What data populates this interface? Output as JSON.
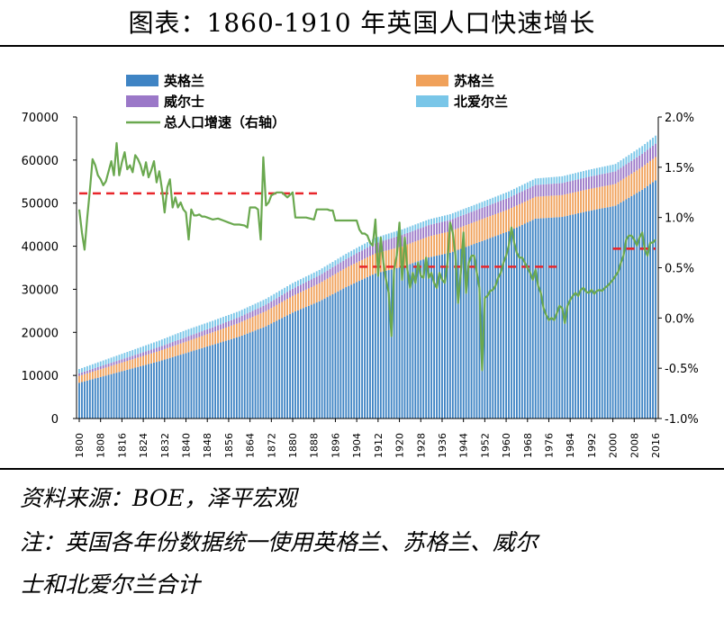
{
  "title": "图表：1860-1910 年英国人口快速增长",
  "footnotes": {
    "source": "资料来源：BOE，泽平宏观",
    "note_line1": "注：英国各年份数据统一使用英格兰、苏格兰、威尔",
    "note_line2": "士和北爱尔兰合计"
  },
  "chart_data": {
    "type": "bar",
    "stacked": true,
    "x_range": [
      1800,
      2016
    ],
    "x_ticks": [
      "1800",
      "1808",
      "1816",
      "1824",
      "1832",
      "1840",
      "1848",
      "1856",
      "1864",
      "1872",
      "1880",
      "1888",
      "1896",
      "1904",
      "1912",
      "1920",
      "1928",
      "1936",
      "1944",
      "1952",
      "1960",
      "1968",
      "1976",
      "1984",
      "1992",
      "2000",
      "2008",
      "2016"
    ],
    "y_left": {
      "min": 0,
      "max": 70000,
      "ticks": [
        "0",
        "10000",
        "20000",
        "30000",
        "40000",
        "50000",
        "60000",
        "70000"
      ]
    },
    "y_right": {
      "min": -1.0,
      "max": 2.0,
      "ticks": [
        "-1.0%",
        "-0.5%",
        "0.0%",
        "0.5%",
        "1.0%",
        "1.5%",
        "2.0%"
      ]
    },
    "series": [
      {
        "name": "英格兰",
        "color": "#3f84c4",
        "points": [
          [
            1800,
            8300
          ],
          [
            1830,
            13300
          ],
          [
            1860,
            19000
          ],
          [
            1870,
            21400
          ],
          [
            1880,
            24600
          ],
          [
            1890,
            27200
          ],
          [
            1900,
            30500
          ],
          [
            1911,
            33700
          ],
          [
            1921,
            35200
          ],
          [
            1931,
            37400
          ],
          [
            1939,
            38500
          ],
          [
            1951,
            41200
          ],
          [
            1961,
            43500
          ],
          [
            1971,
            46400
          ],
          [
            1981,
            46800
          ],
          [
            1991,
            48200
          ],
          [
            2001,
            49400
          ],
          [
            2011,
            53100
          ],
          [
            2016,
            55300
          ]
        ]
      },
      {
        "name": "苏格兰",
        "color": "#f0a15a",
        "points": [
          [
            1800,
            1600
          ],
          [
            1850,
            2900
          ],
          [
            1900,
            4500
          ],
          [
            1950,
            5100
          ],
          [
            2000,
            5060
          ],
          [
            2016,
            5400
          ]
        ]
      },
      {
        "name": "威尔士",
        "color": "#9b78c8",
        "points": [
          [
            1800,
            590
          ],
          [
            1850,
            1160
          ],
          [
            1900,
            2000
          ],
          [
            1920,
            2650
          ],
          [
            1950,
            2600
          ],
          [
            2000,
            2910
          ],
          [
            2016,
            3110
          ]
        ]
      },
      {
        "name": "北爱尔兰",
        "color": "#79c6e8",
        "points": [
          [
            1800,
            1000
          ],
          [
            1840,
            1650
          ],
          [
            1860,
            1400
          ],
          [
            1900,
            1240
          ],
          [
            1950,
            1370
          ],
          [
            2000,
            1690
          ],
          [
            2016,
            1860
          ]
        ]
      }
    ],
    "line_series": {
      "name": "总人口增速（右轴）",
      "axis": "right",
      "color": "#6aa84f",
      "points": [
        [
          1800,
          1.08
        ],
        [
          1801,
          0.85
        ],
        [
          1802,
          0.68
        ],
        [
          1803,
          1.0
        ],
        [
          1804,
          1.28
        ],
        [
          1805,
          1.58
        ],
        [
          1806,
          1.52
        ],
        [
          1807,
          1.42
        ],
        [
          1808,
          1.38
        ],
        [
          1809,
          1.32
        ],
        [
          1810,
          1.36
        ],
        [
          1811,
          1.46
        ],
        [
          1812,
          1.56
        ],
        [
          1813,
          1.42
        ],
        [
          1814,
          1.74
        ],
        [
          1815,
          1.42
        ],
        [
          1816,
          1.55
        ],
        [
          1817,
          1.65
        ],
        [
          1818,
          1.48
        ],
        [
          1819,
          1.52
        ],
        [
          1820,
          1.45
        ],
        [
          1821,
          1.62
        ],
        [
          1822,
          1.58
        ],
        [
          1823,
          1.52
        ],
        [
          1824,
          1.42
        ],
        [
          1825,
          1.55
        ],
        [
          1826,
          1.4
        ],
        [
          1827,
          1.47
        ],
        [
          1828,
          1.56
        ],
        [
          1829,
          1.35
        ],
        [
          1830,
          1.46
        ],
        [
          1831,
          1.28
        ],
        [
          1832,
          1.05
        ],
        [
          1833,
          1.3
        ],
        [
          1834,
          1.38
        ],
        [
          1835,
          1.1
        ],
        [
          1836,
          1.2
        ],
        [
          1837,
          1.1
        ],
        [
          1838,
          1.15
        ],
        [
          1839,
          1.08
        ],
        [
          1840,
          1.05
        ],
        [
          1841,
          0.78
        ],
        [
          1842,
          1.08
        ],
        [
          1843,
          1.02
        ],
        [
          1844,
          1.02
        ],
        [
          1845,
          1.03
        ],
        [
          1846,
          1.01
        ],
        [
          1847,
          1.01
        ],
        [
          1848,
          1.0
        ],
        [
          1850,
          0.98
        ],
        [
          1852,
          0.99
        ],
        [
          1854,
          0.97
        ],
        [
          1856,
          0.95
        ],
        [
          1858,
          0.93
        ],
        [
          1860,
          0.93
        ],
        [
          1862,
          0.92
        ],
        [
          1863,
          0.9
        ],
        [
          1864,
          1.1
        ],
        [
          1866,
          1.1
        ],
        [
          1867,
          1.08
        ],
        [
          1868,
          0.78
        ],
        [
          1869,
          1.6
        ],
        [
          1870,
          1.12
        ],
        [
          1871,
          1.15
        ],
        [
          1872,
          1.22
        ],
        [
          1874,
          1.25
        ],
        [
          1876,
          1.25
        ],
        [
          1878,
          1.2
        ],
        [
          1880,
          1.25
        ],
        [
          1881,
          1.0
        ],
        [
          1885,
          1.0
        ],
        [
          1888,
          0.98
        ],
        [
          1889,
          1.08
        ],
        [
          1893,
          1.08
        ],
        [
          1894,
          1.07
        ],
        [
          1895,
          1.07
        ],
        [
          1896,
          0.97
        ],
        [
          1901,
          0.97
        ],
        [
          1902,
          0.97
        ],
        [
          1904,
          0.97
        ],
        [
          1905,
          0.88
        ],
        [
          1906,
          0.84
        ],
        [
          1907,
          0.84
        ],
        [
          1908,
          0.82
        ],
        [
          1909,
          0.75
        ],
        [
          1910,
          0.72
        ],
        [
          1911,
          0.98
        ],
        [
          1912,
          0.42
        ],
        [
          1913,
          0.8
        ],
        [
          1914,
          0.55
        ],
        [
          1915,
          0.38
        ],
        [
          1916,
          0.25
        ],
        [
          1917,
          -0.18
        ],
        [
          1918,
          0.48
        ],
        [
          1919,
          0.62
        ],
        [
          1920,
          0.95
        ],
        [
          1921,
          0.38
        ],
        [
          1922,
          0.8
        ],
        [
          1923,
          0.48
        ],
        [
          1924,
          0.3
        ],
        [
          1925,
          0.45
        ],
        [
          1926,
          0.35
        ],
        [
          1927,
          0.55
        ],
        [
          1928,
          0.42
        ],
        [
          1929,
          0.4
        ],
        [
          1930,
          0.6
        ],
        [
          1931,
          0.4
        ],
        [
          1932,
          0.45
        ],
        [
          1933,
          0.35
        ],
        [
          1934,
          0.3
        ],
        [
          1935,
          0.45
        ],
        [
          1936,
          0.38
        ],
        [
          1937,
          0.35
        ],
        [
          1938,
          0.55
        ],
        [
          1939,
          0.95
        ],
        [
          1940,
          0.85
        ],
        [
          1941,
          0.62
        ],
        [
          1942,
          0.15
        ],
        [
          1943,
          0.45
        ],
        [
          1944,
          0.85
        ],
        [
          1945,
          0.25
        ],
        [
          1946,
          0.55
        ],
        [
          1947,
          0.62
        ],
        [
          1948,
          0.62
        ],
        [
          1949,
          0.45
        ],
        [
          1950,
          0.3
        ],
        [
          1951,
          -0.52
        ],
        [
          1952,
          0.2
        ],
        [
          1953,
          0.22
        ],
        [
          1954,
          0.27
        ],
        [
          1955,
          0.28
        ],
        [
          1956,
          0.32
        ],
        [
          1957,
          0.4
        ],
        [
          1958,
          0.45
        ],
        [
          1959,
          0.55
        ],
        [
          1960,
          0.62
        ],
        [
          1961,
          0.72
        ],
        [
          1962,
          0.9
        ],
        [
          1963,
          0.75
        ],
        [
          1964,
          0.65
        ],
        [
          1965,
          0.6
        ],
        [
          1966,
          0.6
        ],
        [
          1967,
          0.55
        ],
        [
          1968,
          0.5
        ],
        [
          1969,
          0.45
        ],
        [
          1970,
          0.38
        ],
        [
          1971,
          0.48
        ],
        [
          1972,
          0.32
        ],
        [
          1973,
          0.25
        ],
        [
          1974,
          0.1
        ],
        [
          1975,
          0.03
        ],
        [
          1976,
          -0.02
        ],
        [
          1977,
          0.0
        ],
        [
          1978,
          -0.02
        ],
        [
          1979,
          0.05
        ],
        [
          1980,
          0.12
        ],
        [
          1981,
          0.1
        ],
        [
          1982,
          -0.05
        ],
        [
          1983,
          0.12
        ],
        [
          1984,
          0.18
        ],
        [
          1985,
          0.22
        ],
        [
          1986,
          0.25
        ],
        [
          1987,
          0.22
        ],
        [
          1988,
          0.28
        ],
        [
          1989,
          0.3
        ],
        [
          1990,
          0.26
        ],
        [
          1991,
          0.25
        ],
        [
          1992,
          0.28
        ],
        [
          1993,
          0.24
        ],
        [
          1994,
          0.27
        ],
        [
          1995,
          0.28
        ],
        [
          1996,
          0.27
        ],
        [
          1997,
          0.3
        ],
        [
          1998,
          0.32
        ],
        [
          1999,
          0.35
        ],
        [
          2000,
          0.38
        ],
        [
          2001,
          0.42
        ],
        [
          2002,
          0.46
        ],
        [
          2003,
          0.55
        ],
        [
          2004,
          0.62
        ],
        [
          2005,
          0.78
        ],
        [
          2006,
          0.82
        ],
        [
          2007,
          0.82
        ],
        [
          2008,
          0.78
        ],
        [
          2009,
          0.72
        ],
        [
          2010,
          0.8
        ],
        [
          2011,
          0.85
        ],
        [
          2012,
          0.68
        ],
        [
          2013,
          0.62
        ],
        [
          2014,
          0.75
        ],
        [
          2015,
          0.75
        ],
        [
          2016,
          0.78
        ]
      ]
    },
    "reference_lines": [
      {
        "x": [
          1800,
          1891
        ],
        "value": 1.24,
        "axis": "right",
        "color": "#e8262b",
        "dash": "dashed"
      },
      {
        "x": [
          1905,
          1979
        ],
        "value": 0.51,
        "axis": "right",
        "color": "#e8262b",
        "dash": "dashed"
      },
      {
        "x": [
          2000,
          2016
        ],
        "value": 0.69,
        "axis": "right",
        "color": "#e8262b",
        "dash": "dashed"
      }
    ],
    "legend": {
      "items": [
        "英格兰",
        "苏格兰",
        "威尔士",
        "北爱尔兰",
        "总人口增速（右轴）"
      ],
      "placement": "top-left, two columns"
    }
  }
}
